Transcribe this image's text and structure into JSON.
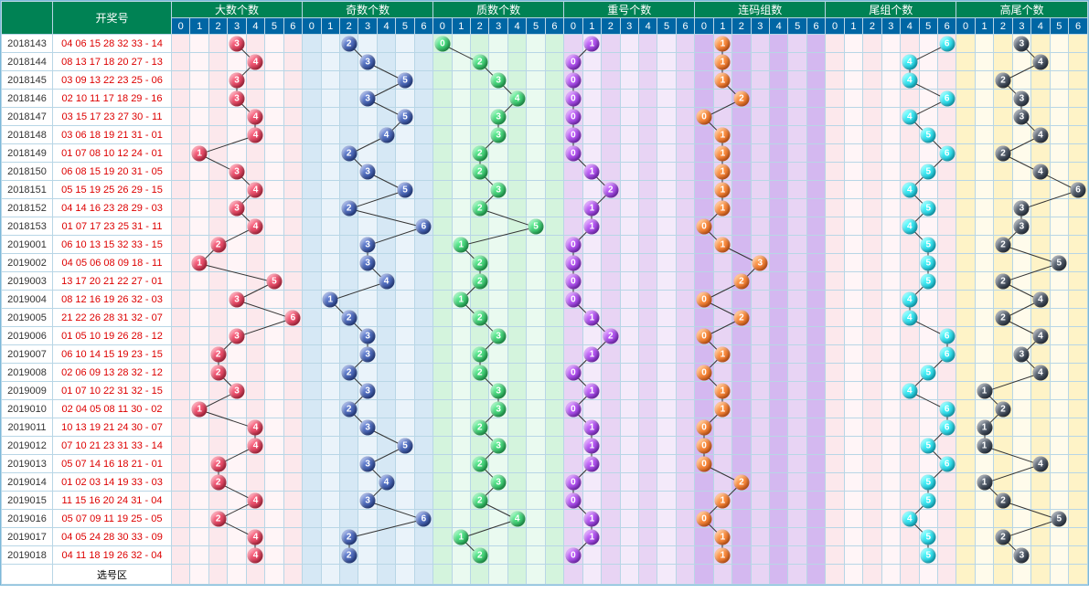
{
  "headers": {
    "draw": "开奖号",
    "groups": [
      "大数个数",
      "奇数个数",
      "质数个数",
      "重号个数",
      "连码组数",
      "尾组个数",
      "高尾个数"
    ],
    "sub": [
      "0",
      "1",
      "2",
      "3",
      "4",
      "5",
      "6"
    ],
    "footer": "选号区"
  },
  "groupStyles": [
    {
      "ball": "#c41e3a",
      "stripes": [
        "#fce8ec",
        "#fff5f7",
        "#fce8ec",
        "#fff5f7",
        "#fce8ec",
        "#fff5f7",
        "#fce8ec"
      ]
    },
    {
      "ball": "#1e3a8a",
      "stripes": [
        "#d6e8f5",
        "#eaf3fa",
        "#d6e8f5",
        "#eaf3fa",
        "#d6e8f5",
        "#eaf3fa",
        "#d6e8f5"
      ]
    },
    {
      "ball": "#16a34a",
      "stripes": [
        "#d4f4dd",
        "#eafaf0",
        "#d4f4dd",
        "#eafaf0",
        "#d4f4dd",
        "#eafaf0",
        "#d4f4dd"
      ]
    },
    {
      "ball": "#7e22ce",
      "stripes": [
        "#e8d4f4",
        "#f4eafa",
        "#e8d4f4",
        "#f4eafa",
        "#e8d4f4",
        "#f4eafa",
        "#e8d4f4"
      ]
    },
    {
      "ball": "#ea580c",
      "stripes": [
        "#d4b8f0",
        "#e8d4f4",
        "#d4b8f0",
        "#e8d4f4",
        "#d4b8f0",
        "#e8d4f4",
        "#d4b8f0"
      ]
    },
    {
      "ball": "#06b6d4",
      "stripes": [
        "#fce8ec",
        "#fff5f7",
        "#fce8ec",
        "#fff5f7",
        "#fce8ec",
        "#fff5f7",
        "#fce8ec"
      ]
    },
    {
      "ball": "#1f2937",
      "stripes": [
        "#fef3c7",
        "#fffbeb",
        "#fef3c7",
        "#fffbeb",
        "#fef3c7",
        "#fffbeb",
        "#fef3c7"
      ]
    }
  ],
  "rows": [
    {
      "id": "2018143",
      "draw": "04 06 15 28 32 33 - 14",
      "v": [
        3,
        2,
        0,
        1,
        1,
        6,
        3
      ]
    },
    {
      "id": "2018144",
      "draw": "08 13 17 18 20 27 - 13",
      "v": [
        4,
        3,
        2,
        0,
        1,
        4,
        4
      ]
    },
    {
      "id": "2018145",
      "draw": "03 09 13 22 23 25 - 06",
      "v": [
        3,
        5,
        3,
        0,
        1,
        4,
        2
      ]
    },
    {
      "id": "2018146",
      "draw": "02 10 11 17 18 29 - 16",
      "v": [
        3,
        3,
        4,
        0,
        2,
        6,
        3
      ]
    },
    {
      "id": "2018147",
      "draw": "03 15 17 23 27 30 - 11",
      "v": [
        4,
        5,
        3,
        0,
        0,
        4,
        3
      ]
    },
    {
      "id": "2018148",
      "draw": "03 06 18 19 21 31 - 01",
      "v": [
        4,
        4,
        3,
        0,
        1,
        5,
        4
      ]
    },
    {
      "id": "2018149",
      "draw": "01 07 08 10 12 24 - 01",
      "v": [
        1,
        2,
        2,
        0,
        1,
        6,
        2
      ]
    },
    {
      "id": "2018150",
      "draw": "06 08 15 19 20 31 - 05",
      "v": [
        3,
        3,
        2,
        1,
        1,
        5,
        4
      ]
    },
    {
      "id": "2018151",
      "draw": "05 15 19 25 26 29 - 15",
      "v": [
        4,
        5,
        3,
        2,
        1,
        4,
        6
      ]
    },
    {
      "id": "2018152",
      "draw": "04 14 16 23 28 29 - 03",
      "v": [
        3,
        2,
        2,
        1,
        1,
        5,
        3
      ]
    },
    {
      "id": "2018153",
      "draw": "01 07 17 23 25 31 - 11",
      "v": [
        4,
        6,
        5,
        1,
        0,
        4,
        3
      ]
    },
    {
      "id": "2019001",
      "draw": "06 10 13 15 32 33 - 15",
      "v": [
        2,
        3,
        1,
        0,
        1,
        5,
        2
      ]
    },
    {
      "id": "2019002",
      "draw": "04 05 06 08 09 18 - 11",
      "v": [
        1,
        3,
        2,
        0,
        3,
        5,
        5
      ]
    },
    {
      "id": "2019003",
      "draw": "13 17 20 21 22 27 - 01",
      "v": [
        5,
        4,
        2,
        0,
        2,
        5,
        2
      ]
    },
    {
      "id": "2019004",
      "draw": "08 12 16 19 26 32 - 03",
      "v": [
        3,
        1,
        1,
        0,
        0,
        4,
        4
      ]
    },
    {
      "id": "2019005",
      "draw": "21 22 26 28 31 32 - 07",
      "v": [
        6,
        2,
        2,
        1,
        2,
        4,
        2
      ]
    },
    {
      "id": "2019006",
      "draw": "01 05 10 19 26 28 - 12",
      "v": [
        3,
        3,
        3,
        2,
        0,
        6,
        4
      ]
    },
    {
      "id": "2019007",
      "draw": "06 10 14 15 19 23 - 15",
      "v": [
        2,
        3,
        2,
        1,
        1,
        6,
        3
      ]
    },
    {
      "id": "2019008",
      "draw": "02 06 09 13 28 32 - 12",
      "v": [
        2,
        2,
        2,
        0,
        0,
        5,
        4
      ]
    },
    {
      "id": "2019009",
      "draw": "01 07 10 22 31 32 - 15",
      "v": [
        3,
        3,
        3,
        1,
        1,
        4,
        1
      ]
    },
    {
      "id": "2019010",
      "draw": "02 04 05 08 11 30 - 02",
      "v": [
        1,
        2,
        3,
        0,
        1,
        6,
        2
      ]
    },
    {
      "id": "2019011",
      "draw": "10 13 19 21 24 30 - 07",
      "v": [
        4,
        3,
        2,
        1,
        0,
        6,
        1
      ]
    },
    {
      "id": "2019012",
      "draw": "07 10 21 23 31 33 - 14",
      "v": [
        4,
        5,
        3,
        1,
        0,
        5,
        1
      ]
    },
    {
      "id": "2019013",
      "draw": "05 07 14 16 18 21 - 01",
      "v": [
        2,
        3,
        2,
        1,
        0,
        6,
        4
      ]
    },
    {
      "id": "2019014",
      "draw": "01 02 03 14 19 33 - 03",
      "v": [
        2,
        4,
        3,
        0,
        2,
        5,
        1
      ]
    },
    {
      "id": "2019015",
      "draw": "11 15 16 20 24 31 - 04",
      "v": [
        4,
        3,
        2,
        0,
        1,
        5,
        2
      ]
    },
    {
      "id": "2019016",
      "draw": "05 07 09 11 19 25 - 05",
      "v": [
        2,
        6,
        4,
        1,
        0,
        4,
        5
      ]
    },
    {
      "id": "2019017",
      "draw": "04 05 24 28 30 33 - 09",
      "v": [
        4,
        2,
        1,
        1,
        1,
        5,
        2
      ]
    },
    {
      "id": "2019018",
      "draw": "04 11 18 19 26 32 - 04",
      "v": [
        4,
        2,
        2,
        0,
        1,
        5,
        3
      ]
    }
  ]
}
